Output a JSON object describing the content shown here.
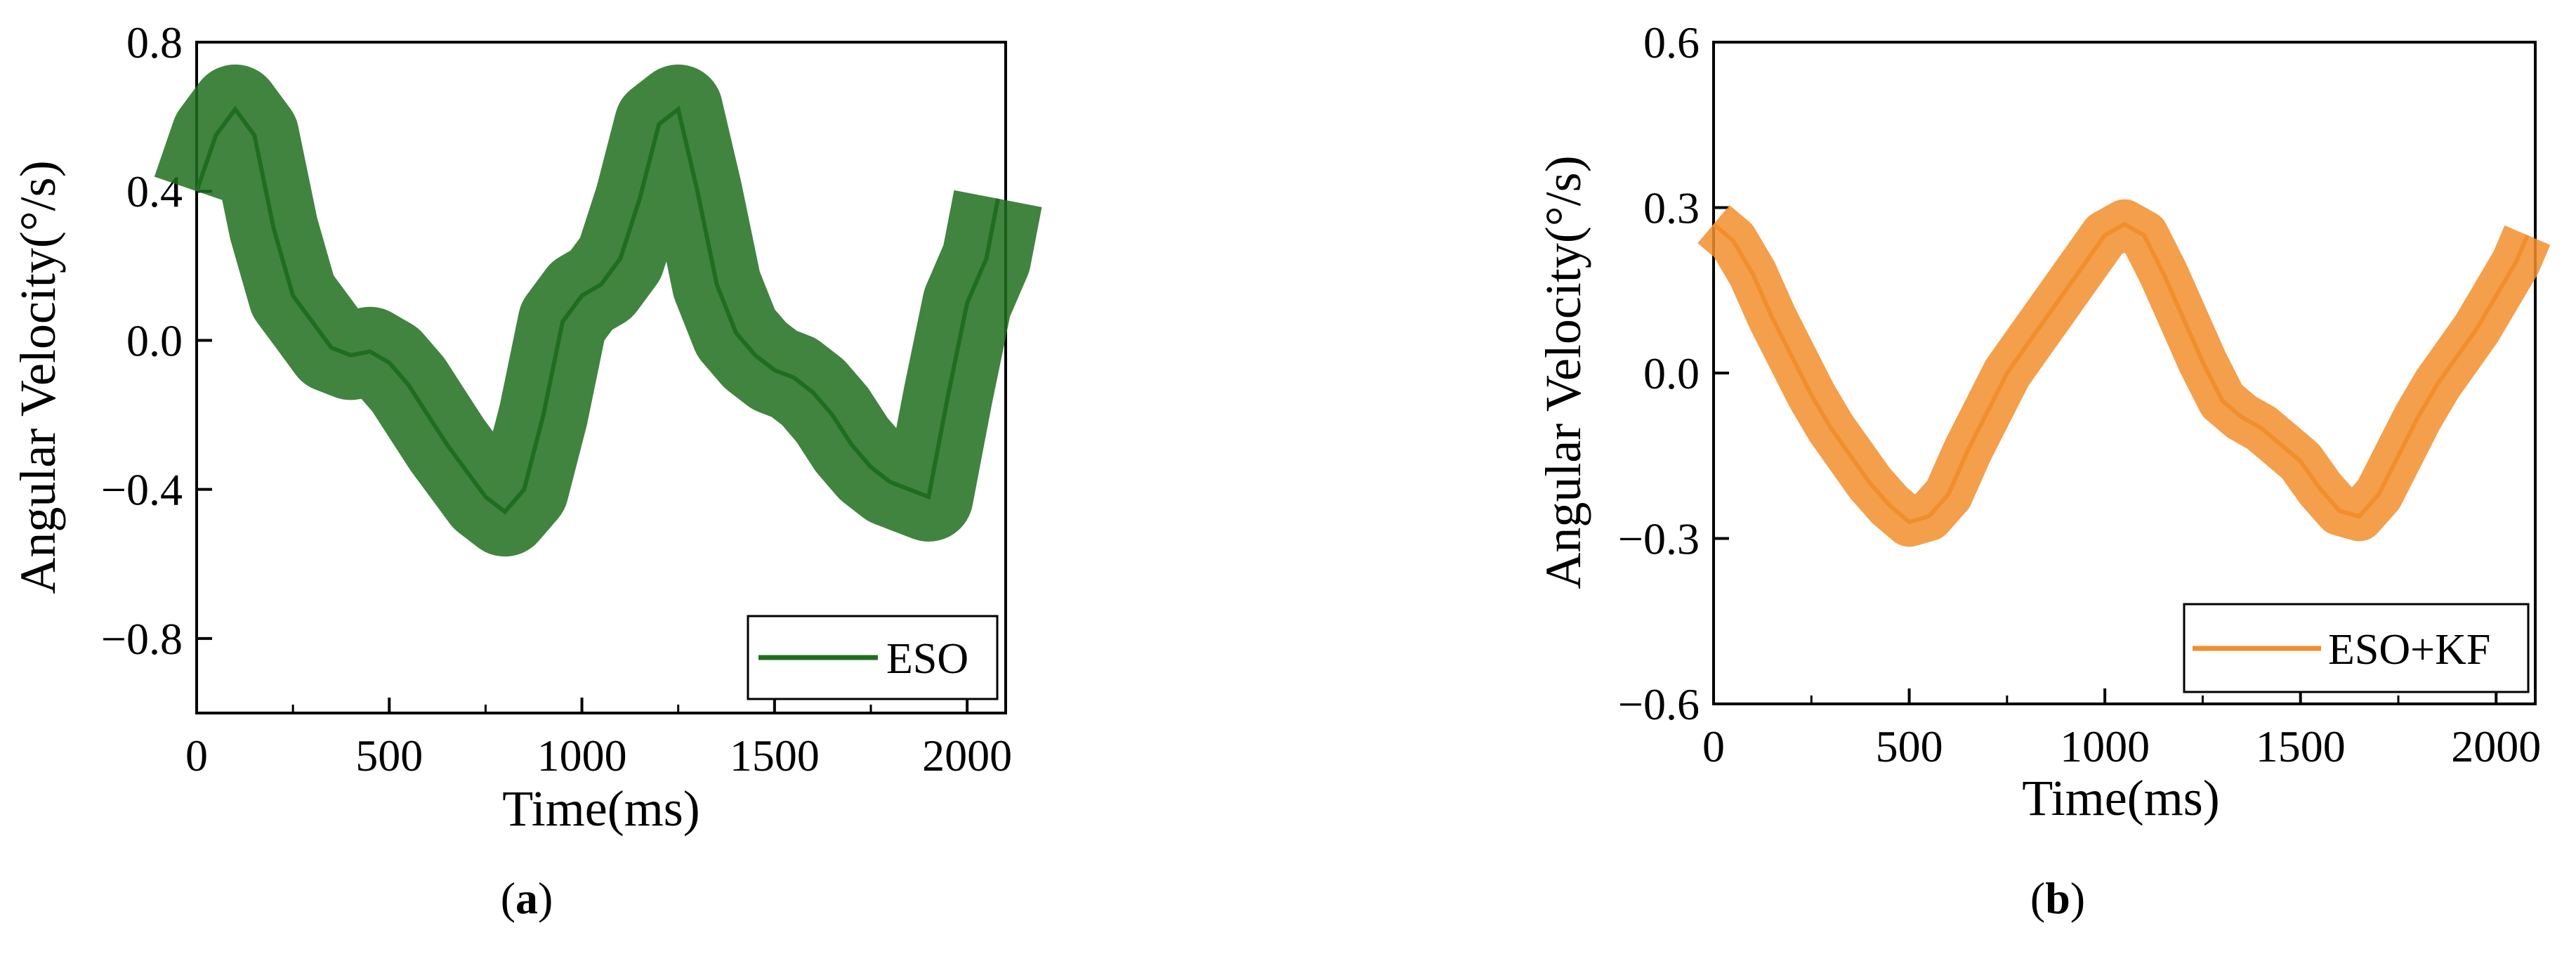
{
  "chart_data": [
    {
      "type": "line",
      "panel": "(a)",
      "caption_letter": "a",
      "xlabel": "Time(ms)",
      "ylabel": "Angular Velocity(°/s)",
      "xlim": [
        0,
        2100
      ],
      "ylim": [
        -1.0,
        0.8
      ],
      "xticks": [
        0,
        500,
        1000,
        1500,
        2000
      ],
      "yticks": [
        -0.8,
        -0.4,
        0.0,
        0.4,
        0.8
      ],
      "ytick_labels": [
        "−0.8",
        "−0.4",
        "0.0",
        "0.4",
        "0.8"
      ],
      "xtick_labels": [
        "0",
        "500",
        "1000",
        "1500",
        "2000"
      ],
      "legend": "bottom-right",
      "grid": false,
      "noise_band": 0.12,
      "series": [
        {
          "name": "ESO",
          "color": "#1f6e1f",
          "x": [
            0,
            50,
            100,
            150,
            200,
            250,
            300,
            350,
            400,
            450,
            500,
            550,
            600,
            650,
            700,
            750,
            800,
            850,
            900,
            950,
            1000,
            1050,
            1100,
            1150,
            1200,
            1250,
            1300,
            1350,
            1400,
            1450,
            1500,
            1550,
            1600,
            1650,
            1700,
            1750,
            1800,
            1850,
            1900,
            1950,
            2000,
            2050,
            2080
          ],
          "y": [
            0.4,
            0.55,
            0.62,
            0.55,
            0.3,
            0.12,
            0.05,
            -0.02,
            -0.04,
            -0.03,
            -0.06,
            -0.12,
            -0.2,
            -0.28,
            -0.35,
            -0.42,
            -0.46,
            -0.4,
            -0.2,
            0.05,
            0.12,
            0.15,
            0.22,
            0.38,
            0.58,
            0.62,
            0.4,
            0.15,
            0.02,
            -0.04,
            -0.08,
            -0.1,
            -0.14,
            -0.2,
            -0.28,
            -0.34,
            -0.38,
            -0.4,
            -0.42,
            -0.15,
            0.1,
            0.22,
            0.38
          ]
        }
      ]
    },
    {
      "type": "line",
      "panel": "(b)",
      "caption_letter": "b",
      "xlabel": "Time(ms)",
      "ylabel": "Angular Velocity(°/s)",
      "xlim": [
        0,
        2100
      ],
      "ylim": [
        -0.6,
        0.6
      ],
      "xticks": [
        0,
        500,
        1000,
        1500,
        2000
      ],
      "yticks": [
        -0.6,
        -0.3,
        0.0,
        0.3,
        0.6
      ],
      "ytick_labels": [
        "−0.6",
        "−0.3",
        "0.0",
        "0.3",
        "0.6"
      ],
      "xtick_labels": [
        "0",
        "500",
        "1000",
        "1500",
        "2000"
      ],
      "legend": "bottom-right",
      "grid": false,
      "noise_band": 0.045,
      "series": [
        {
          "name": "ESO+KF",
          "color": "#f28e2b",
          "x": [
            0,
            50,
            100,
            150,
            200,
            250,
            300,
            350,
            400,
            450,
            500,
            550,
            600,
            650,
            700,
            750,
            800,
            850,
            900,
            950,
            1000,
            1050,
            1100,
            1150,
            1200,
            1250,
            1300,
            1350,
            1400,
            1450,
            1500,
            1550,
            1600,
            1650,
            1700,
            1750,
            1800,
            1850,
            1900,
            1950,
            2000,
            2050,
            2080
          ],
          "y": [
            0.27,
            0.24,
            0.18,
            0.1,
            0.03,
            -0.04,
            -0.1,
            -0.15,
            -0.2,
            -0.24,
            -0.27,
            -0.26,
            -0.22,
            -0.14,
            -0.07,
            0.0,
            0.05,
            0.1,
            0.15,
            0.2,
            0.25,
            0.27,
            0.25,
            0.18,
            0.1,
            0.02,
            -0.05,
            -0.08,
            -0.1,
            -0.13,
            -0.16,
            -0.21,
            -0.25,
            -0.26,
            -0.22,
            -0.15,
            -0.08,
            -0.02,
            0.03,
            0.08,
            0.14,
            0.2,
            0.25
          ]
        }
      ]
    }
  ]
}
